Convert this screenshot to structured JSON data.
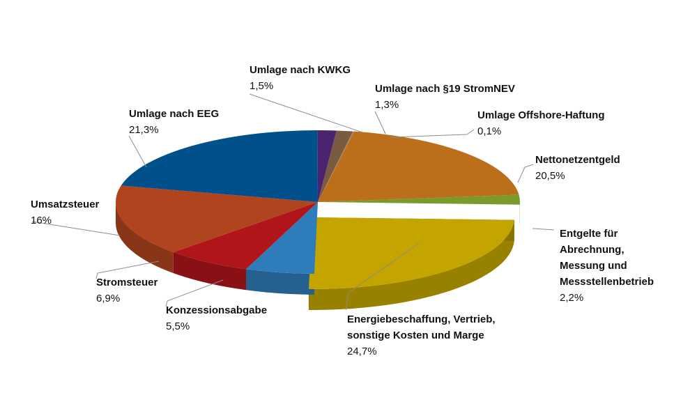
{
  "chart_data": {
    "type": "pie",
    "title": "",
    "style": "3d-exploded",
    "slices": [
      {
        "label": [
          "Umlage Offshore-Haftung"
        ],
        "value_text": "0,1%",
        "value": 0.1,
        "color": "#9a8a74"
      },
      {
        "label": [
          "Nettonetzentgeld"
        ],
        "value_text": "20,5%",
        "value": 20.5,
        "color": "#bc6f1a"
      },
      {
        "label": [
          "Entgelte für",
          "Abrechnung,",
          "Messung und",
          "Messstellenbetrieb"
        ],
        "value_text": "2,2%",
        "value": 2.2,
        "color": "#7a9a2c"
      },
      {
        "label": [
          "Energiebeschaffung, Vertrieb,",
          "sonstige Kosten und Marge"
        ],
        "value_text": "24,7%",
        "value": 24.7,
        "color": "#c4a500",
        "exploded": true
      },
      {
        "label": [
          "Konzessionsabgabe"
        ],
        "value_text": "5,5%",
        "value": 5.5,
        "color": "#2e7cba"
      },
      {
        "label": [
          "Stromsteuer"
        ],
        "value_text": "6,9%",
        "value": 6.9,
        "color": "#b0151a"
      },
      {
        "label": [
          "Umsatzsteuer"
        ],
        "value_text": "16%",
        "value": 16,
        "color": "#b0441f"
      },
      {
        "label": [
          "Umlage nach EEG"
        ],
        "value_text": "21,3%",
        "value": 21.3,
        "color": "#00508c"
      },
      {
        "label": [
          "Umlage nach KWKG"
        ],
        "value_text": "1,5%",
        "value": 1.5,
        "color": "#4a2470"
      },
      {
        "label": [
          "Umlage nach §19 StromNEV"
        ],
        "value_text": "1,3%",
        "value": 1.3,
        "color": "#7a5a40"
      }
    ]
  }
}
